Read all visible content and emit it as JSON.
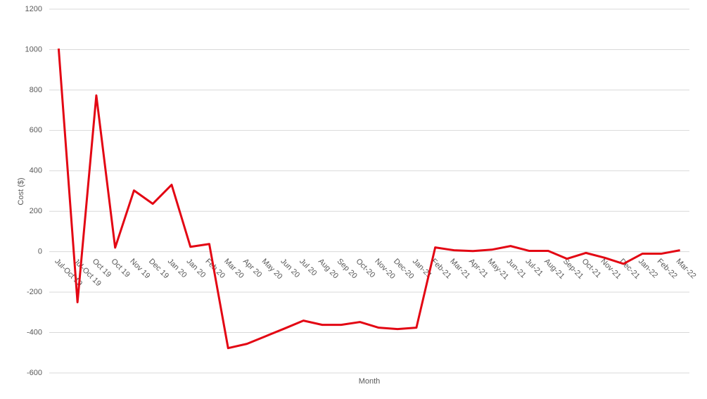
{
  "chart_data": {
    "type": "line",
    "x_label": "Month",
    "y_label": "Cost ($)",
    "categories": [
      "Jul-Oct 19",
      "Jul-Oct 19",
      "Oct 19",
      "Oct 19",
      "Nov 19",
      "Dec 19",
      "Jan 20",
      "Jan 20",
      "Feb 20",
      "Mar 20",
      "Apr 20",
      "May 20",
      "Jun 20",
      "Jul 20",
      "Aug 20",
      "Sep 20",
      "Oct-20",
      "Nov-20",
      "Dec-20",
      "Jan-21",
      "Feb-21",
      "Mar-21",
      "Apr-21",
      "May-21",
      "Jun-21",
      "Jul-21",
      "Aug-21",
      "Sep-21",
      "Oct-21",
      "Nov-21",
      "Dec-21",
      "Jan-22",
      "Feb-22",
      "Mar-22"
    ],
    "values": [
      1005,
      -250,
      773,
      20,
      303,
      237,
      331,
      24,
      38,
      -477,
      -456,
      -418,
      -380,
      -341,
      -362,
      -362,
      -348,
      -376,
      -383,
      -376,
      21,
      7,
      3,
      10,
      28,
      4,
      4,
      -35,
      -6,
      -30,
      -60,
      -10,
      -10,
      7
    ],
    "color": "#e30613",
    "ylim": [
      -600,
      1200
    ],
    "yticks": [
      -600,
      -400,
      -200,
      0,
      200,
      400,
      600,
      800,
      1000,
      1200
    ],
    "grid": true
  }
}
